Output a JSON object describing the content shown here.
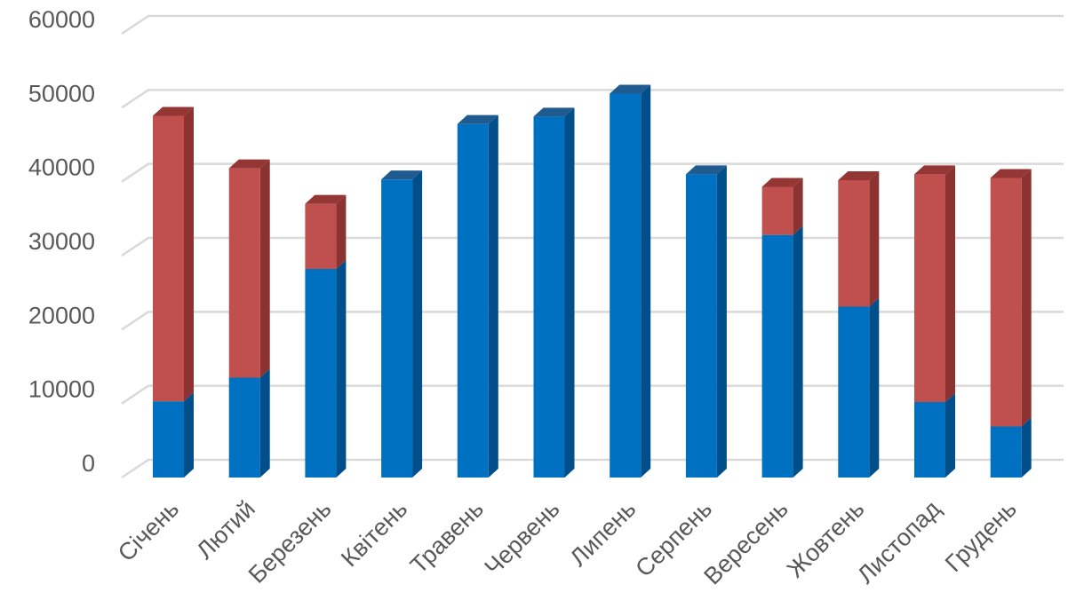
{
  "chart_data": {
    "type": "bar",
    "stacked": true,
    "three_d": true,
    "grid": true,
    "legend": "none",
    "ylim": [
      0,
      60000
    ],
    "yticks": [
      0,
      10000,
      20000,
      30000,
      40000,
      50000,
      60000
    ],
    "ytick_labels": [
      "0",
      "10000",
      "20000",
      "30000",
      "40000",
      "50000",
      "60000"
    ],
    "categories": [
      "Січень",
      "Лютий",
      "Березень",
      "Квітень",
      "Травень",
      "Червень",
      "Липень",
      "Серпень",
      "Вересень",
      "Жовтень",
      "Листопад",
      "Грудень"
    ],
    "series": [
      {
        "color": "#0070c0",
        "side_color": "#004f8a",
        "top_color": "#1f5b8f",
        "values": [
          10300,
          13500,
          28200,
          40300,
          47800,
          48800,
          51900,
          41000,
          32800,
          23100,
          10200,
          6900
        ]
      },
      {
        "color": "#c0504d",
        "side_color": "#8c3331",
        "top_color": "#943634",
        "values": [
          38600,
          28300,
          8800,
          0,
          0,
          0,
          0,
          0,
          6500,
          17100,
          30800,
          33600
        ]
      }
    ]
  }
}
